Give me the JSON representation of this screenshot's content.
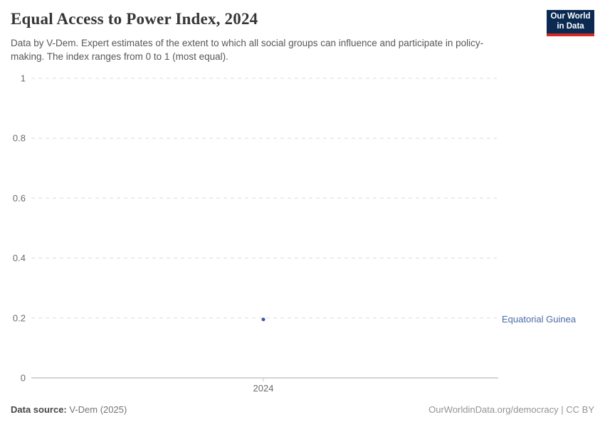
{
  "header": {
    "title": "Equal Access to Power Index, 2024",
    "subtitle": "Data by V-Dem. Expert estimates of the extent to which all social groups can influence and participate in policy-making. The index ranges from 0 to 1 (most equal)."
  },
  "logo": {
    "line1": "Our World",
    "line2": "in Data"
  },
  "colors": {
    "logo_navy": "#0b2a51",
    "logo_red": "#d52b21",
    "series_blue": "#3a5b9c",
    "entity_label_blue": "#4c6ba8",
    "gridline": "#dcdcdc",
    "axis": "#a8a8a8",
    "tick_text": "#6b6b6b"
  },
  "chart_data": {
    "type": "scatter",
    "title": "Equal Access to Power Index, 2024",
    "xlabel": "",
    "ylabel": "",
    "x": [
      2024
    ],
    "series": [
      {
        "name": "Equatorial Guinea",
        "values": [
          0.195
        ],
        "color": "#3a5b9c"
      }
    ],
    "ylim": [
      0,
      1
    ],
    "yticks": [
      {
        "value": 0,
        "label": "0"
      },
      {
        "value": 0.2,
        "label": "0.2"
      },
      {
        "value": 0.4,
        "label": "0.4"
      },
      {
        "value": 0.6,
        "label": "0.6"
      },
      {
        "value": 0.8,
        "label": "0.8"
      },
      {
        "value": 1,
        "label": "1"
      }
    ],
    "xticks": [
      {
        "value": 2024,
        "label": "2024"
      }
    ],
    "grid": "horizontal-dashed",
    "legend_position": "right-inline-label",
    "entity_label": "Equatorial Guinea"
  },
  "footer": {
    "source_label": "Data source:",
    "source_value": "V-Dem (2025)",
    "link": "OurWorldinData.org/democracy | CC BY"
  }
}
